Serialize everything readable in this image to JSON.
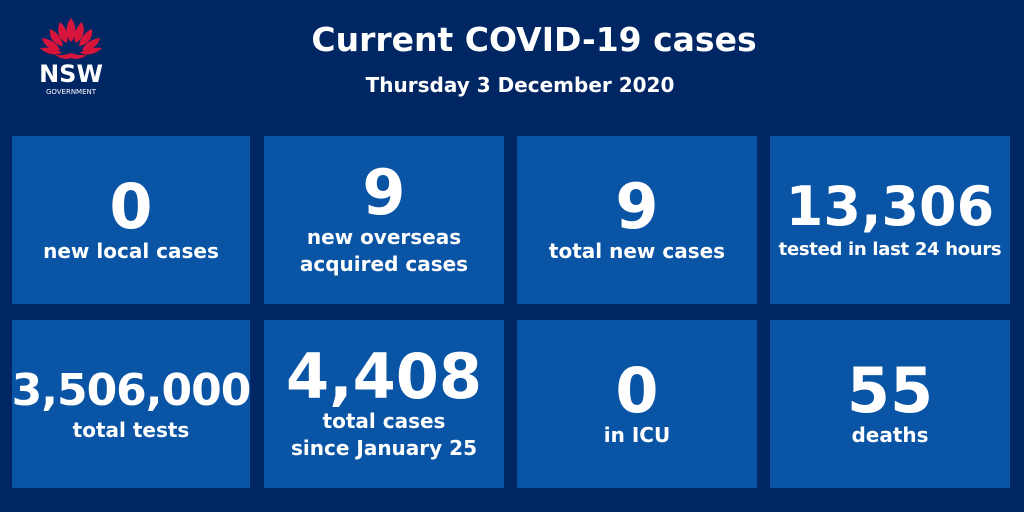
{
  "header": {
    "title": "Current COVID-19 cases",
    "date": "Thursday 3 December 2020"
  },
  "logo": {
    "name": "NSW",
    "sub": "GOVERNMENT",
    "icon": "waratah-icon",
    "color": "#d7153a"
  },
  "colors": {
    "background": "#002664",
    "tile": "#0a54a5"
  },
  "stats": [
    {
      "value": "0",
      "label": "new local cases"
    },
    {
      "value": "9",
      "label": "new overseas\nacquired cases"
    },
    {
      "value": "9",
      "label": "total new cases"
    },
    {
      "value": "13,306",
      "label": "tested in last 24 hours"
    },
    {
      "value": "3,506,000",
      "label": "total tests"
    },
    {
      "value": "4,408",
      "label": "total cases\nsince January 25"
    },
    {
      "value": "0",
      "label": "in ICU"
    },
    {
      "value": "55",
      "label": "deaths"
    }
  ]
}
